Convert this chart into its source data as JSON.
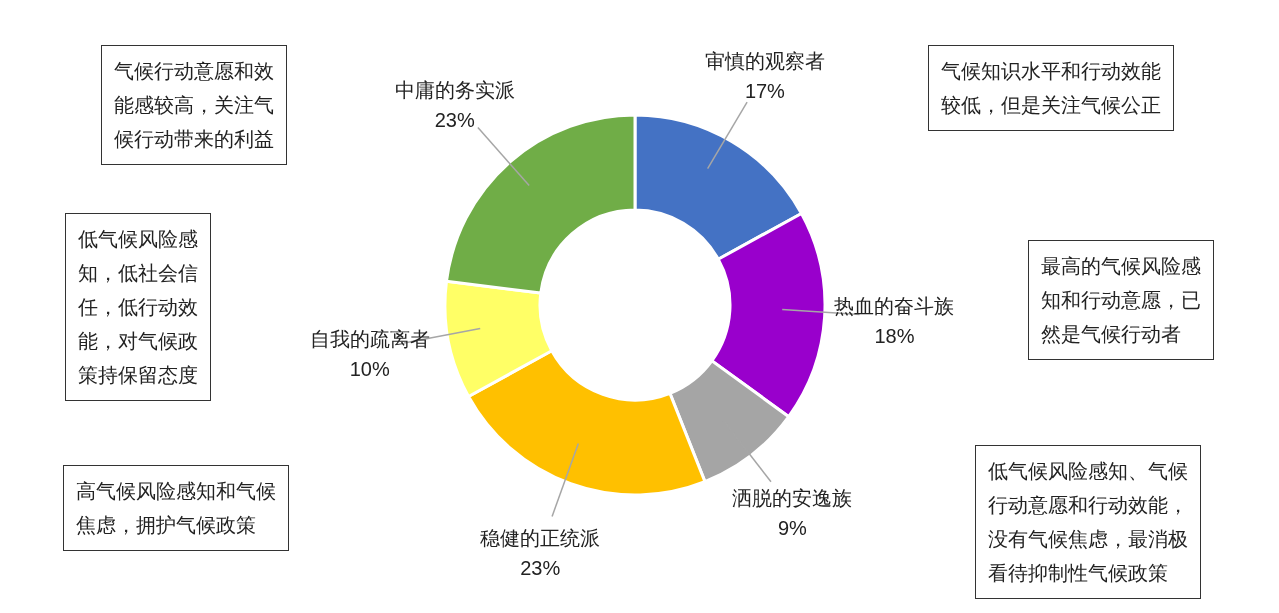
{
  "chart_data": {
    "type": "donut",
    "categories": [
      "审慎的观察者",
      "热血的奋斗族",
      "洒脱的安逸族",
      "稳健的正统派",
      "自我的疏离者",
      "中庸的务实派"
    ],
    "values": [
      17,
      18,
      9,
      23,
      10,
      23
    ],
    "value_labels": [
      "17%",
      "18%",
      "9%",
      "23%",
      "10%",
      "23%"
    ],
    "colors": [
      "#4472c4",
      "#9900cc",
      "#a5a5a5",
      "#ffc000",
      "#ffff66",
      "#70ad47"
    ],
    "legend": false,
    "annotations": [
      "气候知识水平和行动效能较低，但是关注气候公正",
      "最高的气候风险感知和行动意愿，已然是气候行动者",
      "低气候风险感知、气候行动意愿和行动效能，没有气候焦虑，最消极看待抑制性气候政策",
      "高气候风险感知和气候焦虑，拥护气候政策",
      "低气候风险感知，低社会信任，低行动效能，对气候政策持保留态度",
      "气候行动意愿和效能感较高，关注气候行动带来的利益"
    ]
  }
}
